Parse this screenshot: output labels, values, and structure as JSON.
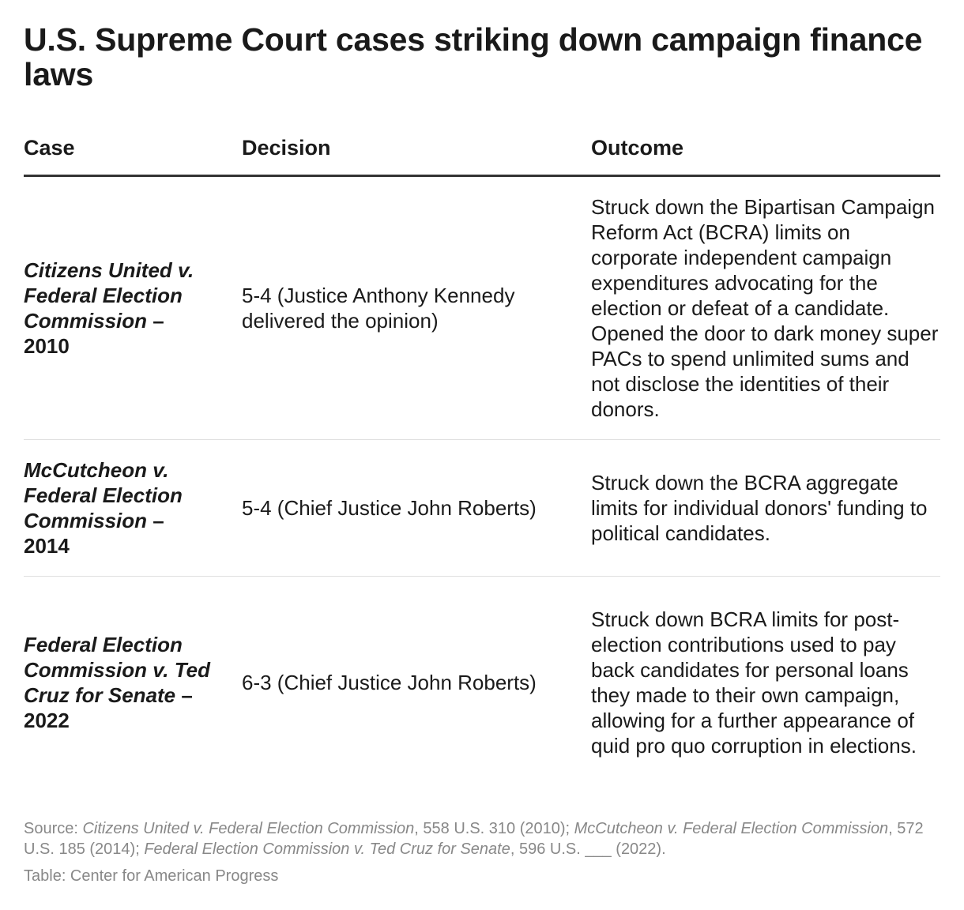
{
  "title": "U.S. Supreme Court cases striking down campaign finance laws",
  "table": {
    "headers": [
      "Case",
      "Decision",
      "Outcome"
    ],
    "rows": [
      {
        "case": "Citizens United v. Federal Election Commission",
        "year_suffix": " – 2010",
        "decision": "5-4 (Justice Anthony Kennedy delivered the opinion)",
        "outcome": "Struck down the Bipartisan Campaign Reform Act (BCRA) limits on corporate independent campaign expenditures advocating for the election or defeat of a candidate. Opened the door to dark money super PACs to spend unlimited sums and not disclose the identities of their donors."
      },
      {
        "case": "McCutcheon v. Federal Election Commission",
        "year_suffix": " – 2014",
        "decision": "5-4 (Chief Justice John Roberts)",
        "outcome": "Struck down the BCRA aggregate limits for individual donors' funding to political candidates."
      },
      {
        "case": "Federal Election Commission v. Ted Cruz for Senate",
        "year_suffix": " – 2022",
        "decision": "6-3 (Chief Justice John Roberts)",
        "outcome": "Struck down BCRA limits for post-election contributions used to pay back candidates for personal loans they made to their own campaign, allowing for a further appearance of quid pro quo corruption in elections."
      }
    ]
  },
  "source": {
    "prefix": "Source: ",
    "case1": "Citizens United v. Federal Election Commission",
    "cite1": ", 558 U.S. 310 (2010); ",
    "case2": "McCutcheon v. Federal Election Commission",
    "cite2": ", 572 U.S. 185 (2014); ",
    "case3": "Federal Election Commission v. Ted Cruz for Senate",
    "cite3": ", 596 U.S. ___ (2022)."
  },
  "credit": "Table: Center for American Progress"
}
